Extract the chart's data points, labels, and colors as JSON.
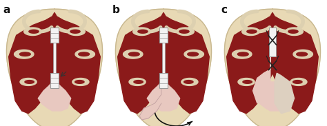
{
  "panel_labels": [
    "a",
    "b",
    "c"
  ],
  "label_fontsize": 11,
  "label_fontweight": "bold",
  "label_color": "#111111",
  "background_color": "#ffffff",
  "fig_width": 4.74,
  "fig_height": 1.83,
  "dpi": 100,
  "outer_skin_color": "#e8d9b5",
  "outer_skin_border": "#c8b890",
  "nasal_tissue_dark": "#8b1a1a",
  "nasal_tissue_mid": "#b52020",
  "pink_septum": "#e8c8c0",
  "turbinate_cream": "#ddd0b0",
  "instrument_color": "#f2f2f2",
  "instrument_outline": "#999999",
  "suture_color": "#222222",
  "arrow_color": "#111111"
}
